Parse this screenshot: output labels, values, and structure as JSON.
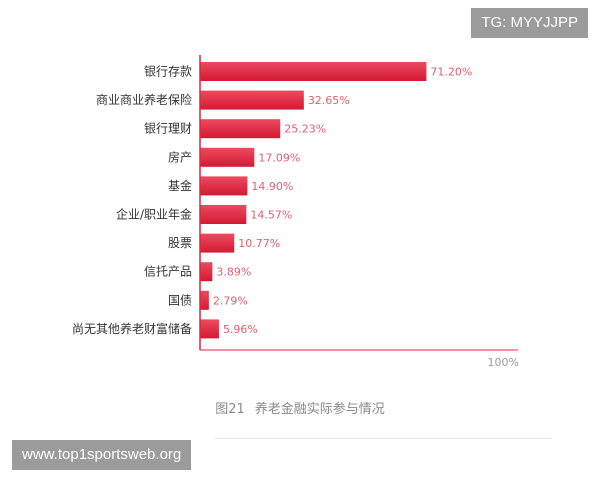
{
  "watermarks": {
    "top": "TG: MYYJJPP",
    "bottom": "www.top1sportsweb.org"
  },
  "caption": {
    "number": "图21",
    "title": "养老金融实际参与情况"
  },
  "chart_data": {
    "type": "bar",
    "orientation": "horizontal",
    "title": "",
    "xlabel": "",
    "ylabel": "",
    "xlim": [
      0,
      100
    ],
    "axis_max_label": "100%",
    "grid": false,
    "categories": [
      "银行存款",
      "商业商业养老保险",
      "银行理财",
      "房产",
      "基金",
      "企业/职业年金",
      "股票",
      "信托产品",
      "国债",
      "尚无其他养老财富储备"
    ],
    "values": [
      71.2,
      32.65,
      25.23,
      17.09,
      14.9,
      14.57,
      10.77,
      3.89,
      2.79,
      5.96
    ],
    "value_labels": [
      "71.20%",
      "32.65%",
      "25.23%",
      "17.09%",
      "14.90%",
      "14.57%",
      "10.77%",
      "3.89%",
      "2.79%",
      "5.96%"
    ],
    "bar_color": "#e2263f",
    "label_color": "#e0606f",
    "axis_color": "#e2263f"
  }
}
